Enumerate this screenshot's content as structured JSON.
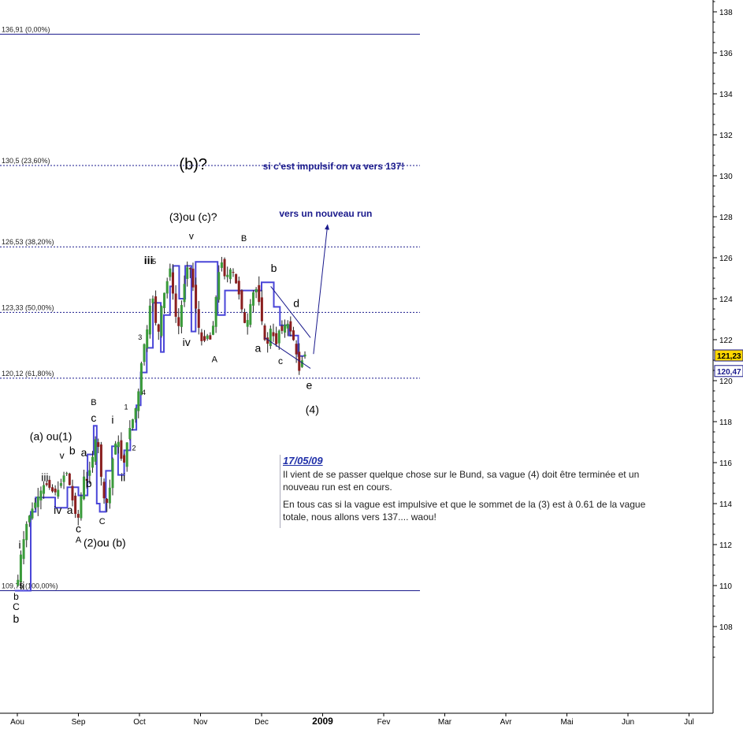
{
  "chart_data": {
    "type": "candlestick",
    "title": "",
    "ylim": [
      106.5,
      138.5
    ],
    "y_ticks": [
      108,
      110,
      112,
      114,
      116,
      118,
      120,
      122,
      124,
      126,
      128,
      130,
      132,
      134,
      136,
      138
    ],
    "x_ticks": [
      {
        "label": "Aou",
        "month_index": 0
      },
      {
        "label": "Sep",
        "month_index": 1
      },
      {
        "label": "Oct",
        "month_index": 2
      },
      {
        "label": "Nov",
        "month_index": 3
      },
      {
        "label": "Dec",
        "month_index": 4
      },
      {
        "label": "2009",
        "month_index": 5
      },
      {
        "label": "Fev",
        "month_index": 6
      },
      {
        "label": "Mar",
        "month_index": 7
      },
      {
        "label": "Avr",
        "month_index": 8
      },
      {
        "label": "Mai",
        "month_index": 9
      },
      {
        "label": "Jun",
        "month_index": 10
      },
      {
        "label": "Jul",
        "month_index": 11
      }
    ],
    "price_badges": [
      {
        "label": "121,23",
        "value": 121.23,
        "bg": "#ffd700",
        "fg": "#000000"
      },
      {
        "label": "120,47",
        "value": 120.47,
        "bg": "#ffffff",
        "fg": "#1a1a8c"
      }
    ],
    "fib_levels": [
      {
        "label": "136,91 (0,00%)",
        "value": 136.91
      },
      {
        "label": "130,5 (23,60%)",
        "value": 130.5
      },
      {
        "label": "126,53 (38,20%)",
        "value": 126.53
      },
      {
        "label": "123,33 (50,00%)",
        "value": 123.33
      },
      {
        "label": "120,12 (61,80%)",
        "value": 120.12
      },
      {
        "label": "109,75 (100,00%)",
        "value": 109.75
      }
    ],
    "price_path": [
      [
        0.0,
        110.0
      ],
      [
        0.05,
        111.4
      ],
      [
        0.1,
        112.2
      ],
      [
        0.15,
        113.0
      ],
      [
        0.22,
        113.6
      ],
      [
        0.3,
        114.1
      ],
      [
        0.38,
        114.6
      ],
      [
        0.45,
        115.0
      ],
      [
        0.52,
        114.8
      ],
      [
        0.6,
        114.5
      ],
      [
        0.68,
        114.7
      ],
      [
        0.75,
        115.3
      ],
      [
        0.8,
        115.6
      ],
      [
        0.85,
        115.0
      ],
      [
        0.9,
        114.2
      ],
      [
        0.95,
        113.5
      ],
      [
        1.0,
        113.3
      ],
      [
        1.05,
        114.5
      ],
      [
        1.1,
        115.5
      ],
      [
        1.15,
        115.0
      ],
      [
        1.2,
        115.9
      ],
      [
        1.25,
        116.5
      ],
      [
        1.3,
        117.6
      ],
      [
        1.35,
        116.0
      ],
      [
        1.4,
        114.5
      ],
      [
        1.45,
        113.9
      ],
      [
        1.5,
        114.3
      ],
      [
        1.55,
        116.0
      ],
      [
        1.6,
        116.9
      ],
      [
        1.65,
        117.1
      ],
      [
        1.7,
        116.2
      ],
      [
        1.75,
        116.0
      ],
      [
        1.82,
        117.5
      ],
      [
        1.88,
        118.0
      ],
      [
        1.95,
        118.8
      ],
      [
        2.0,
        119.8
      ],
      [
        2.05,
        121.5
      ],
      [
        2.1,
        122.0
      ],
      [
        2.15,
        123.0
      ],
      [
        2.2,
        124.5
      ],
      [
        2.25,
        123.2
      ],
      [
        2.3,
        122.0
      ],
      [
        2.35,
        123.5
      ],
      [
        2.4,
        124.2
      ],
      [
        2.45,
        124.8
      ],
      [
        2.5,
        125.5
      ],
      [
        2.55,
        124.2
      ],
      [
        2.6,
        123.0
      ],
      [
        2.65,
        122.6
      ],
      [
        2.7,
        124.0
      ],
      [
        2.75,
        125.0
      ],
      [
        2.8,
        125.8
      ],
      [
        2.85,
        125.2
      ],
      [
        2.9,
        124.0
      ],
      [
        2.95,
        123.0
      ],
      [
        3.0,
        122.0
      ],
      [
        3.05,
        121.8
      ],
      [
        3.1,
        122.3
      ],
      [
        3.15,
        121.9
      ],
      [
        3.2,
        122.5
      ],
      [
        3.25,
        124.0
      ],
      [
        3.3,
        125.3
      ],
      [
        3.35,
        125.8
      ],
      [
        3.4,
        125.0
      ],
      [
        3.45,
        125.2
      ],
      [
        3.5,
        125.5
      ],
      [
        3.55,
        125.2
      ],
      [
        3.6,
        124.5
      ],
      [
        3.65,
        124.0
      ],
      [
        3.7,
        123.0
      ],
      [
        3.75,
        122.6
      ],
      [
        3.8,
        123.5
      ],
      [
        3.85,
        124.2
      ],
      [
        3.9,
        124.6
      ],
      [
        3.95,
        124.0
      ],
      [
        4.0,
        123.0
      ],
      [
        4.05,
        122.0
      ],
      [
        4.1,
        121.8
      ],
      [
        4.15,
        122.6
      ],
      [
        4.2,
        122.1
      ],
      [
        4.25,
        121.7
      ],
      [
        4.3,
        122.7
      ],
      [
        4.35,
        122.3
      ],
      [
        4.4,
        123.0
      ],
      [
        4.45,
        122.6
      ],
      [
        4.5,
        122.2
      ],
      [
        4.55,
        121.7
      ],
      [
        4.6,
        120.6
      ],
      [
        4.64,
        120.3
      ],
      [
        4.68,
        121.5
      ],
      [
        4.72,
        121.2
      ]
    ],
    "envelope_path": [
      [
        -0.04,
        109.75
      ],
      [
        0.22,
        109.75
      ],
      [
        0.22,
        113.6
      ],
      [
        0.3,
        113.6
      ],
      [
        0.3,
        114.3
      ],
      [
        0.62,
        114.3
      ],
      [
        0.62,
        113.8
      ],
      [
        0.82,
        113.8
      ],
      [
        0.82,
        114.8
      ],
      [
        1.0,
        114.8
      ],
      [
        1.0,
        114.4
      ],
      [
        1.15,
        114.4
      ],
      [
        1.15,
        116.4
      ],
      [
        1.25,
        116.4
      ],
      [
        1.25,
        117.8
      ],
      [
        1.3,
        117.8
      ],
      [
        1.3,
        114.0
      ],
      [
        1.35,
        114.0
      ],
      [
        1.35,
        113.6
      ],
      [
        1.45,
        113.6
      ],
      [
        1.45,
        115.6
      ],
      [
        1.55,
        115.6
      ],
      [
        1.55,
        116.8
      ],
      [
        1.65,
        116.8
      ],
      [
        1.65,
        115.4
      ],
      [
        1.75,
        115.4
      ],
      [
        1.75,
        116.6
      ],
      [
        1.85,
        116.6
      ],
      [
        1.85,
        117.6
      ],
      [
        1.95,
        117.6
      ],
      [
        1.95,
        118.8
      ],
      [
        2.02,
        118.8
      ],
      [
        2.02,
        120.4
      ],
      [
        2.12,
        120.4
      ],
      [
        2.12,
        121.6
      ],
      [
        2.22,
        121.6
      ],
      [
        2.22,
        123.8
      ],
      [
        2.35,
        123.8
      ],
      [
        2.35,
        121.4
      ],
      [
        2.4,
        121.4
      ],
      [
        2.4,
        123.2
      ],
      [
        2.5,
        123.2
      ],
      [
        2.5,
        124.6
      ],
      [
        2.55,
        124.6
      ],
      [
        2.55,
        125.6
      ],
      [
        2.65,
        125.6
      ],
      [
        2.65,
        124.0
      ],
      [
        2.75,
        124.0
      ],
      [
        2.75,
        125.6
      ],
      [
        2.85,
        125.6
      ],
      [
        2.85,
        122.4
      ],
      [
        2.92,
        122.4
      ],
      [
        2.92,
        125.8
      ],
      [
        3.28,
        125.8
      ],
      [
        3.28,
        123.2
      ],
      [
        3.4,
        123.2
      ],
      [
        3.4,
        124.4
      ],
      [
        4.0,
        124.4
      ],
      [
        4.0,
        124.8
      ],
      [
        4.2,
        124.8
      ],
      [
        4.2,
        123.6
      ],
      [
        4.3,
        123.6
      ],
      [
        4.3,
        122.7
      ],
      [
        4.45,
        122.7
      ],
      [
        4.45,
        122.2
      ],
      [
        4.6,
        122.2
      ],
      [
        4.6,
        121.2
      ],
      [
        4.7,
        121.2
      ]
    ],
    "trendlines": [
      {
        "points": [
          [
            4.15,
            124.6
          ],
          [
            4.8,
            122.1
          ]
        ],
        "color": "#1a1a8c"
      },
      {
        "points": [
          [
            4.05,
            122.1
          ],
          [
            4.8,
            120.6
          ]
        ],
        "color": "#1a1a8c"
      }
    ],
    "arrows": [
      {
        "points": [
          [
            4.85,
            121.3
          ],
          [
            5.08,
            127.6
          ]
        ],
        "color": "#1a1a8c"
      }
    ],
    "wave_labels": [
      {
        "text": "(b)?",
        "m": 2.88,
        "v": 130.3,
        "size": 20
      },
      {
        "text": "(3)ou (c)?",
        "m": 2.88,
        "v": 127.8,
        "size": 14
      },
      {
        "text": "v",
        "m": 2.85,
        "v": 126.9,
        "size": 12
      },
      {
        "text": "iii",
        "m": 2.15,
        "v": 125.7,
        "size": 14,
        "bold": true
      },
      {
        "text": "5",
        "m": 2.24,
        "v": 125.7,
        "size": 9
      },
      {
        "text": "iv",
        "m": 2.77,
        "v": 121.7,
        "size": 14
      },
      {
        "text": "A",
        "m": 3.23,
        "v": 120.9,
        "size": 11
      },
      {
        "text": "B",
        "m": 3.71,
        "v": 126.8,
        "size": 11
      },
      {
        "text": "b",
        "m": 4.2,
        "v": 125.3,
        "size": 14
      },
      {
        "text": "d",
        "m": 4.57,
        "v": 123.6,
        "size": 14
      },
      {
        "text": "a",
        "m": 3.94,
        "v": 121.4,
        "size": 14
      },
      {
        "text": "c",
        "m": 4.31,
        "v": 120.8,
        "size": 12
      },
      {
        "text": "e",
        "m": 4.78,
        "v": 119.6,
        "size": 14
      },
      {
        "text": "(4)",
        "m": 4.83,
        "v": 118.4,
        "size": 14
      },
      {
        "text": "3",
        "m": 2.01,
        "v": 122.0,
        "size": 9
      },
      {
        "text": "4",
        "m": 2.07,
        "v": 119.3,
        "size": 9
      },
      {
        "text": "1",
        "m": 1.78,
        "v": 118.6,
        "size": 9
      },
      {
        "text": "2",
        "m": 1.91,
        "v": 116.6,
        "size": 9
      },
      {
        "text": "i",
        "m": 1.56,
        "v": 117.9,
        "size": 14
      },
      {
        "text": "ii",
        "m": 1.73,
        "v": 115.1,
        "size": 14
      },
      {
        "text": "B",
        "m": 1.25,
        "v": 118.8,
        "size": 11
      },
      {
        "text": "c",
        "m": 1.25,
        "v": 118.0,
        "size": 14
      },
      {
        "text": "C",
        "m": 1.39,
        "v": 113.0,
        "size": 11
      },
      {
        "text": "(2)ou (b)",
        "m": 1.43,
        "v": 111.9,
        "size": 14
      },
      {
        "text": "(a) ou(1)",
        "m": 0.55,
        "v": 117.1,
        "size": 14
      },
      {
        "text": "v",
        "m": 0.73,
        "v": 116.2,
        "size": 12
      },
      {
        "text": "b",
        "m": 0.9,
        "v": 116.4,
        "size": 14
      },
      {
        "text": "a",
        "m": 1.09,
        "v": 116.3,
        "size": 14
      },
      {
        "text": "iii",
        "m": 0.45,
        "v": 115.1,
        "size": 14
      },
      {
        "text": "b",
        "m": 1.17,
        "v": 114.8,
        "size": 14
      },
      {
        "text": "iv",
        "m": 0.66,
        "v": 113.5,
        "size": 14
      },
      {
        "text": "a",
        "m": 0.86,
        "v": 113.5,
        "size": 14
      },
      {
        "text": "c",
        "m": 1.0,
        "v": 112.6,
        "size": 14
      },
      {
        "text": "A",
        "m": 1.0,
        "v": 112.1,
        "size": 11
      },
      {
        "text": "i",
        "m": 0.04,
        "v": 111.8,
        "size": 14
      },
      {
        "text": "ii",
        "m": 0.08,
        "v": 109.8,
        "size": 14
      },
      {
        "text": "b",
        "m": -0.02,
        "v": 108.2,
        "size": 14
      },
      {
        "text": "b",
        "m": -0.02,
        "v": 109.3,
        "size": 12
      },
      {
        "text": "C",
        "m": -0.02,
        "v": 108.8,
        "size": 12
      }
    ],
    "annotations": [
      {
        "text": "si c'est impulsif on va vers 137!",
        "m": 5.18,
        "v": 130.3,
        "size": 12,
        "color": "#1a1a8c",
        "bold": true
      },
      {
        "text": "vers un nouveau run",
        "m": 5.05,
        "v": 128.0,
        "size": 12,
        "color": "#1a1a8c",
        "bold": true
      }
    ]
  },
  "note": {
    "date": "17/05/09",
    "paragraph1": "Il vient de se passer quelque chose sur le Bund, sa vague (4) doit être terminée et un nouveau run est en cours.",
    "paragraph2": "En tous cas si la vague est impulsive et que le sommet de la (3) est à 0.61 de la vague totale, nous allons vers 137.... waou!"
  },
  "colors": {
    "envelope": "#4a46d8",
    "up_candle": "#3a9a3a",
    "down_candle": "#8a1f1f",
    "annotation": "#1a1a8c",
    "fib_line": "#1a1a8c"
  }
}
